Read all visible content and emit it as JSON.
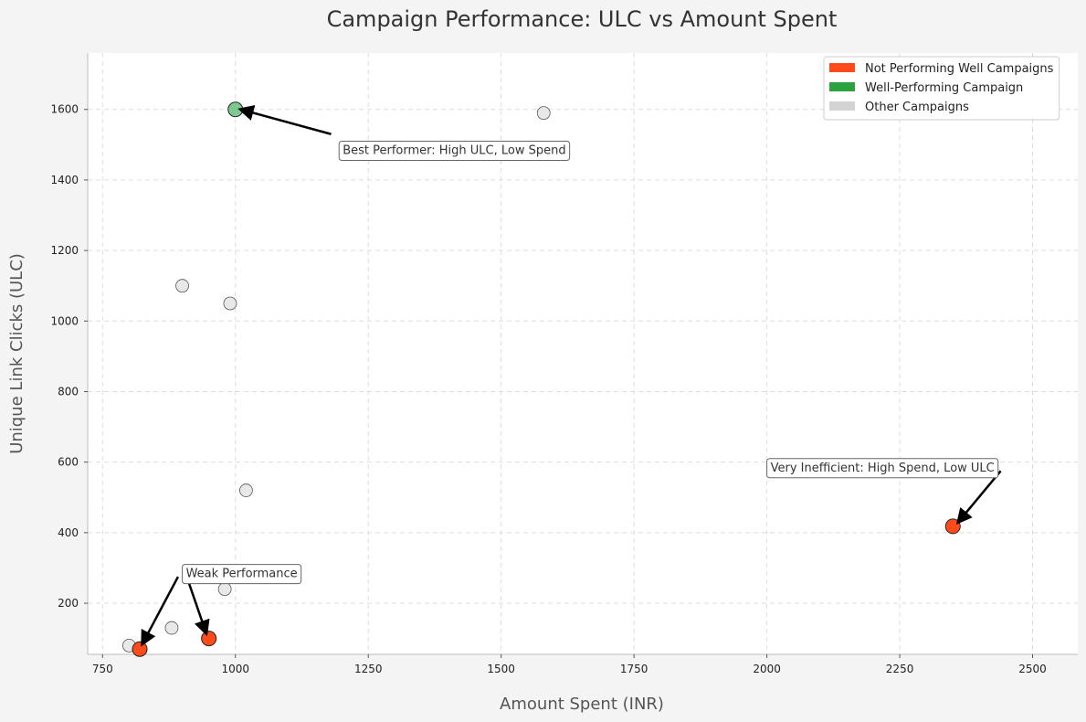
{
  "chart_data": {
    "type": "scatter",
    "title": "Campaign Performance: ULC vs Amount Spent",
    "xlabel": "Amount Spent (INR)",
    "ylabel": "Unique Link Clicks (ULC)",
    "xlim": [
      722,
      2585
    ],
    "ylim": [
      55,
      1760
    ],
    "xticks": [
      750,
      1000,
      1250,
      1500,
      1750,
      2000,
      2250,
      2500
    ],
    "yticks": [
      200,
      400,
      600,
      800,
      1000,
      1200,
      1400,
      1600
    ],
    "grid": true,
    "legend_position": "top-right",
    "series": [
      {
        "name": "Not Performing Well Campaigns",
        "color": "#ff4b1a",
        "points": [
          {
            "x": 820,
            "y": 70
          },
          {
            "x": 950,
            "y": 100
          },
          {
            "x": 2350,
            "y": 418
          }
        ]
      },
      {
        "name": "Well-Performing Campaign",
        "color": "#7ec98f",
        "legend_color": "#2ca13f",
        "points": [
          {
            "x": 1000,
            "y": 1600
          }
        ]
      },
      {
        "name": "Other Campaigns",
        "color": "#e6e6e6",
        "legend_color": "#d3d3d3",
        "points": [
          {
            "x": 800,
            "y": 80
          },
          {
            "x": 880,
            "y": 130
          },
          {
            "x": 980,
            "y": 240
          },
          {
            "x": 1020,
            "y": 520
          },
          {
            "x": 900,
            "y": 1100
          },
          {
            "x": 990,
            "y": 1050
          },
          {
            "x": 1580,
            "y": 1590
          }
        ]
      }
    ],
    "annotations": [
      {
        "text": "Best Performer: High ULC, Low Spend",
        "anchor": [
          1195,
          1510
        ],
        "arrows": [
          {
            "from": [
              1180,
              1530
            ],
            "to": [
              1010,
              1600
            ]
          }
        ]
      },
      {
        "text": "Very Inefficient: High Spend, Low ULC",
        "anchor": [
          2000,
          610
        ],
        "arrows": [
          {
            "from": [
              2440,
              575
            ],
            "to": [
              2360,
              430
            ]
          }
        ]
      },
      {
        "text": "Weak Performance",
        "anchor": [
          900,
          310
        ],
        "arrows": [
          {
            "from": [
              892,
              275
            ],
            "to": [
              825,
              85
            ]
          },
          {
            "from": [
              905,
              290
            ],
            "to": [
              945,
              115
            ]
          }
        ]
      }
    ]
  }
}
